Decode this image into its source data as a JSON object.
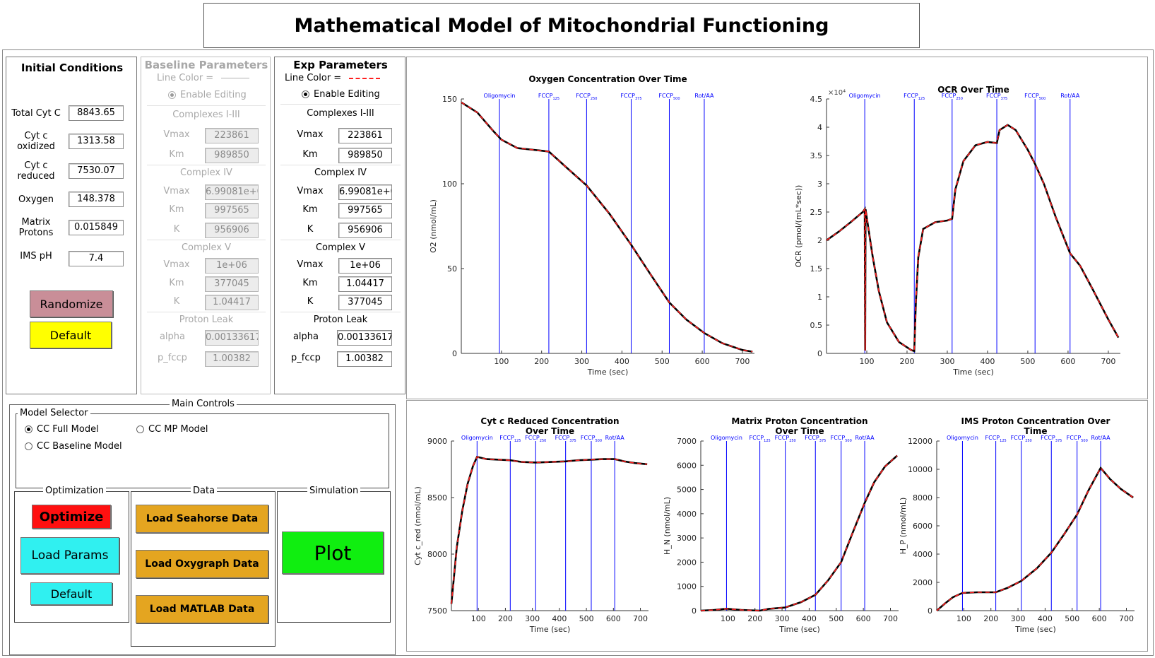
{
  "app_title": "Mathematical Model of Mitochondrial Functioning",
  "initial_conditions": {
    "title": "Initial Conditions",
    "fields": [
      {
        "label": "Total Cyt C",
        "value": "8843.65"
      },
      {
        "label": "Cyt c\noxidized",
        "value": "1313.58"
      },
      {
        "label": "Cyt c\nreduced",
        "value": "7530.07"
      },
      {
        "label": "Oxygen",
        "value": "148.378"
      },
      {
        "label": "Matrix\nProtons",
        "value": "0.015849"
      },
      {
        "label": "IMS pH",
        "value": "7.4"
      }
    ],
    "randomize_label": "Randomize",
    "default_label": "Default"
  },
  "baseline": {
    "title": "Baseline Parameters",
    "line_color_label": "Line Color =",
    "enable_label": "Enable Editing",
    "complex13": {
      "title": "Complexes I-III",
      "vmax_label": "Vmax",
      "vmax": "223861",
      "km_label": "Km",
      "km": "989850"
    },
    "complex4": {
      "title": "Complex IV",
      "vmax_label": "Vmax",
      "vmax": "6.99081e+0",
      "km_label": "Km",
      "km": "997565",
      "k_label": "K",
      "k": "956906"
    },
    "complex5": {
      "title": "Complex V",
      "vmax_label": "Vmax",
      "vmax": "1e+06",
      "km_label": "Km",
      "km": "377045",
      "k_label": "K",
      "k": "1.04417"
    },
    "leak": {
      "title": "Proton Leak",
      "alpha_label": "alpha",
      "alpha": "0.00133617",
      "pfccp_label": "p_fccp",
      "pfccp": "1.00382"
    }
  },
  "exp": {
    "title": "Exp Parameters",
    "line_color_label": "Line Color =",
    "enable_label": "Enable Editing",
    "complex13": {
      "title": "Complexes I-III",
      "vmax_label": "Vmax",
      "vmax": "223861",
      "km_label": "Km",
      "km": "989850"
    },
    "complex4": {
      "title": "Complex IV",
      "vmax_label": "Vmax",
      "vmax": "6.99081e+0",
      "km_label": "Km",
      "km": "997565",
      "k_label": "K",
      "k": "956906"
    },
    "complex5": {
      "title": "Complex V",
      "vmax_label": "Vmax",
      "vmax": "1e+06",
      "km_label": "Km",
      "km": "1.04417",
      "k_label": "K",
      "k": "377045"
    },
    "leak": {
      "title": "Proton Leak",
      "alpha_label": "alpha",
      "alpha": "0.00133617",
      "pfccp_label": "p_fccp",
      "pfccp": "1.00382"
    }
  },
  "main_controls": {
    "title": "Main Controls",
    "model_selector": {
      "title": "Model Selector",
      "options": [
        "CC Full Model",
        "CC MP Model",
        "CC Baseline Model"
      ],
      "selected": "CC Full Model"
    },
    "optimization": {
      "title": "Optimization",
      "optimize": "Optimize",
      "load_params": "Load Params",
      "default": "Default"
    },
    "data": {
      "title": "Data",
      "seahorse": "Load Seahorse Data",
      "oxygraph": "Load Oxygraph Data",
      "matlab": "Load MATLAB Data"
    },
    "simulation": {
      "title": "Simulation",
      "plot": "Plot"
    }
  },
  "colors": {
    "randomize": "#c98e98",
    "default_yellow": "#ffff00",
    "optimize": "#ff1010",
    "cyan": "#30f0f0",
    "orange": "#e4a520",
    "plot_green": "#10ee10",
    "series_black": "#000000",
    "series_red": "#ff2020",
    "marker_blue": "#0000ff"
  },
  "chart_data": [
    {
      "type": "line",
      "title": "Oxygen Concentration Over Time",
      "xlabel": "Time (sec)",
      "ylabel": "O2 (nmol/mL)",
      "xlim": [
        0,
        730
      ],
      "ylim": [
        0,
        150
      ],
      "xticks": [
        100,
        200,
        300,
        400,
        500,
        600,
        700
      ],
      "yticks": [
        0,
        50,
        100,
        150
      ],
      "markers": [
        {
          "x": 95,
          "label": "Oligomycin"
        },
        {
          "x": 218,
          "label": "FCCP",
          "sub": "125"
        },
        {
          "x": 312,
          "label": "FCCP",
          "sub": "250"
        },
        {
          "x": 423,
          "label": "FCCP",
          "sub": "375"
        },
        {
          "x": 518,
          "label": "FCCP",
          "sub": "500"
        },
        {
          "x": 605,
          "label": "Rot/AA"
        }
      ],
      "series": [
        {
          "x": [
            0,
            40,
            80,
            100,
            140,
            180,
            218,
            260,
            312,
            370,
            423,
            470,
            518,
            560,
            605,
            650,
            700,
            725
          ],
          "y": [
            148,
            142,
            131,
            126,
            121,
            120,
            119,
            110,
            99,
            82,
            64,
            47,
            30,
            20,
            12,
            6,
            2,
            1
          ]
        }
      ]
    },
    {
      "type": "line",
      "title": "OCR Over Time",
      "xlabel": "Time (sec)",
      "ylabel": "OCR (pmol/(mL*sec))",
      "y_multiplier": "×10^4",
      "xlim": [
        0,
        730
      ],
      "ylim": [
        0,
        4.5
      ],
      "xticks": [
        100,
        200,
        300,
        400,
        500,
        600,
        700
      ],
      "yticks": [
        0,
        0.5,
        1,
        1.5,
        2,
        2.5,
        3,
        3.5,
        4,
        4.5
      ],
      "markers": [
        {
          "x": 95,
          "label": "Oligomycin"
        },
        {
          "x": 218,
          "label": "FCCP",
          "sub": "125"
        },
        {
          "x": 312,
          "label": "FCCP",
          "sub": "250"
        },
        {
          "x": 423,
          "label": "FCCP",
          "sub": "375"
        },
        {
          "x": 518,
          "label": "FCCP",
          "sub": "500"
        },
        {
          "x": 605,
          "label": "Rot/AA"
        }
      ],
      "series": [
        {
          "x": [
            0,
            30,
            60,
            90,
            95,
            96,
            97,
            100,
            115,
            130,
            150,
            180,
            210,
            218,
            222,
            228,
            240,
            270,
            300,
            312,
            320,
            340,
            370,
            400,
            423,
            430,
            450,
            470,
            500,
            518,
            540,
            570,
            605,
            630,
            660,
            700,
            725
          ],
          "y": [
            2.0,
            2.15,
            2.32,
            2.5,
            2.55,
            0.05,
            2.55,
            2.4,
            1.7,
            1.1,
            0.55,
            0.2,
            0.06,
            0.04,
            0.9,
            1.7,
            2.2,
            2.32,
            2.35,
            2.38,
            2.9,
            3.4,
            3.68,
            3.74,
            3.72,
            3.95,
            4.04,
            3.95,
            3.6,
            3.35,
            3.0,
            2.4,
            1.77,
            1.55,
            1.15,
            0.6,
            0.28
          ]
        }
      ]
    },
    {
      "type": "line",
      "title": "Cyt c Reduced Concentration Over Time",
      "xlabel": "Time (sec)",
      "ylabel": "Cyt c_red (nmol/mL)",
      "xlim": [
        0,
        730
      ],
      "ylim": [
        7500,
        9000
      ],
      "xticks": [
        100,
        200,
        300,
        400,
        500,
        600,
        700
      ],
      "yticks": [
        7500,
        8000,
        8500,
        9000
      ],
      "markers": [
        {
          "x": 95,
          "label": "Oligomycin"
        },
        {
          "x": 218,
          "label": "FCCP",
          "sub": "125"
        },
        {
          "x": 312,
          "label": "FCCP",
          "sub": "250"
        },
        {
          "x": 423,
          "label": "FCCP",
          "sub": "375"
        },
        {
          "x": 518,
          "label": "FCCP",
          "sub": "500"
        },
        {
          "x": 605,
          "label": "Rot/AA"
        }
      ],
      "series": [
        {
          "x": [
            0,
            20,
            40,
            60,
            80,
            95,
            130,
            218,
            260,
            312,
            370,
            423,
            470,
            518,
            560,
            605,
            640,
            680,
            725
          ],
          "y": [
            7560,
            8060,
            8380,
            8620,
            8780,
            8860,
            8840,
            8830,
            8815,
            8810,
            8815,
            8820,
            8830,
            8835,
            8840,
            8840,
            8820,
            8805,
            8795
          ]
        }
      ]
    },
    {
      "type": "line",
      "title": "Matrix Proton Concentration Over Time",
      "xlabel": "Time (sec)",
      "ylabel": "H_N (nmol/mL)",
      "xlim": [
        0,
        730
      ],
      "ylim": [
        0,
        7000
      ],
      "xticks": [
        100,
        200,
        300,
        400,
        500,
        600,
        700
      ],
      "yticks": [
        0,
        1000,
        2000,
        3000,
        4000,
        5000,
        6000,
        7000
      ],
      "markers": [
        {
          "x": 95,
          "label": "Oligomycin"
        },
        {
          "x": 218,
          "label": "FCCP",
          "sub": "125"
        },
        {
          "x": 312,
          "label": "FCCP",
          "sub": "250"
        },
        {
          "x": 423,
          "label": "FCCP",
          "sub": "375"
        },
        {
          "x": 518,
          "label": "FCCP",
          "sub": "500"
        },
        {
          "x": 605,
          "label": "Rot/AA"
        }
      ],
      "series": [
        {
          "x": [
            0,
            50,
            95,
            150,
            218,
            250,
            312,
            370,
            423,
            470,
            518,
            560,
            605,
            640,
            680,
            725
          ],
          "y": [
            0,
            30,
            80,
            30,
            0,
            70,
            130,
            350,
            650,
            1250,
            2000,
            3200,
            4450,
            5300,
            5950,
            6400
          ]
        }
      ]
    },
    {
      "type": "line",
      "title": "IMS Proton Concentration Over Time",
      "xlabel": "Time (sec)",
      "ylabel": "H_P (nmol/mL)",
      "xlim": [
        0,
        730
      ],
      "ylim": [
        0,
        12000
      ],
      "xticks": [
        100,
        200,
        300,
        400,
        500,
        600,
        700
      ],
      "yticks": [
        0,
        2000,
        4000,
        6000,
        8000,
        10000,
        12000
      ],
      "markers": [
        {
          "x": 95,
          "label": "Oligomycin"
        },
        {
          "x": 218,
          "label": "FCCP",
          "sub": "125"
        },
        {
          "x": 312,
          "label": "FCCP",
          "sub": "250"
        },
        {
          "x": 423,
          "label": "FCCP",
          "sub": "375"
        },
        {
          "x": 518,
          "label": "FCCP",
          "sub": "500"
        },
        {
          "x": 605,
          "label": "Rot/AA"
        }
      ],
      "series": [
        {
          "x": [
            0,
            30,
            60,
            95,
            150,
            218,
            260,
            312,
            370,
            423,
            470,
            518,
            560,
            605,
            640,
            680,
            725
          ],
          "y": [
            0,
            500,
            950,
            1250,
            1300,
            1300,
            1600,
            2100,
            3000,
            4100,
            5400,
            6800,
            8500,
            10100,
            9300,
            8600,
            8000
          ]
        }
      ]
    }
  ]
}
